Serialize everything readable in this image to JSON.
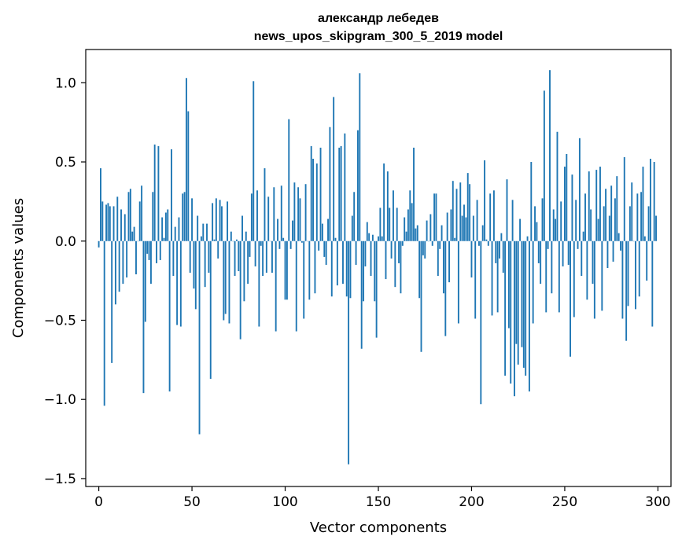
{
  "chart_data": {
    "type": "bar",
    "title": "александр лебедев",
    "subtitle": "news_upos_skipgram_300_5_2019 model",
    "xlabel": "Vector components",
    "ylabel": "Components values",
    "xlim": [
      -7,
      307
    ],
    "ylim": [
      -1.55,
      1.21
    ],
    "xticks": [
      0,
      50,
      100,
      150,
      200,
      250,
      300
    ],
    "xtick_labels": [
      "0",
      "50",
      "100",
      "150",
      "200",
      "250",
      "300"
    ],
    "yticks": [
      -1.5,
      -1.0,
      -0.5,
      0.0,
      0.5,
      1.0
    ],
    "ytick_labels": [
      "−1.5",
      "−1.0",
      "−0.5",
      "0.0",
      "0.5",
      "1.0"
    ],
    "grid": false,
    "bar_color": "#1f77b4",
    "x": [
      0,
      1,
      2,
      3,
      4,
      5,
      6,
      7,
      8,
      9,
      10,
      11,
      12,
      13,
      14,
      15,
      16,
      17,
      18,
      19,
      20,
      21,
      22,
      23,
      24,
      25,
      26,
      27,
      28,
      29,
      30,
      31,
      32,
      33,
      34,
      35,
      36,
      37,
      38,
      39,
      40,
      41,
      42,
      43,
      44,
      45,
      46,
      47,
      48,
      49,
      50,
      51,
      52,
      53,
      54,
      55,
      56,
      57,
      58,
      59,
      60,
      61,
      62,
      63,
      64,
      65,
      66,
      67,
      68,
      69,
      70,
      71,
      72,
      73,
      74,
      75,
      76,
      77,
      78,
      79,
      80,
      81,
      82,
      83,
      84,
      85,
      86,
      87,
      88,
      89,
      90,
      91,
      92,
      93,
      94,
      95,
      96,
      97,
      98,
      99,
      100,
      101,
      102,
      103,
      104,
      105,
      106,
      107,
      108,
      109,
      110,
      111,
      112,
      113,
      114,
      115,
      116,
      117,
      118,
      119,
      120,
      121,
      122,
      123,
      124,
      125,
      126,
      127,
      128,
      129,
      130,
      131,
      132,
      133,
      134,
      135,
      136,
      137,
      138,
      139,
      140,
      141,
      142,
      143,
      144,
      145,
      146,
      147,
      148,
      149,
      150,
      151,
      152,
      153,
      154,
      155,
      156,
      157,
      158,
      159,
      160,
      161,
      162,
      163,
      164,
      165,
      166,
      167,
      168,
      169,
      170,
      171,
      172,
      173,
      174,
      175,
      176,
      177,
      178,
      179,
      180,
      181,
      182,
      183,
      184,
      185,
      186,
      187,
      188,
      189,
      190,
      191,
      192,
      193,
      194,
      195,
      196,
      197,
      198,
      199,
      200,
      201,
      202,
      203,
      204,
      205,
      206,
      207,
      208,
      209,
      210,
      211,
      212,
      213,
      214,
      215,
      216,
      217,
      218,
      219,
      220,
      221,
      222,
      223,
      224,
      225,
      226,
      227,
      228,
      229,
      230,
      231,
      232,
      233,
      234,
      235,
      236,
      237,
      238,
      239,
      240,
      241,
      242,
      243,
      244,
      245,
      246,
      247,
      248,
      249,
      250,
      251,
      252,
      253,
      254,
      255,
      256,
      257,
      258,
      259,
      260,
      261,
      262,
      263,
      264,
      265,
      266,
      267,
      268,
      269,
      270,
      271,
      272,
      273,
      274,
      275,
      276,
      277,
      278,
      279,
      280,
      281,
      282,
      283,
      284,
      285,
      286,
      287,
      288,
      289,
      290,
      291,
      292,
      293,
      294,
      295,
      296,
      297,
      298,
      299
    ],
    "values": [
      -0.04,
      0.46,
      0.25,
      -1.04,
      0.23,
      0.24,
      0.22,
      -0.77,
      0.22,
      -0.4,
      0.28,
      -0.32,
      0.2,
      -0.27,
      0.17,
      -0.23,
      0.31,
      0.33,
      0.06,
      0.09,
      -0.21,
      0.0,
      0.25,
      0.35,
      -0.96,
      -0.51,
      -0.08,
      -0.12,
      -0.27,
      0.31,
      0.61,
      -0.14,
      0.6,
      -0.12,
      0.15,
      0.02,
      0.18,
      0.2,
      -0.95,
      0.58,
      -0.22,
      0.09,
      -0.53,
      0.15,
      -0.54,
      0.3,
      0.31,
      1.03,
      0.82,
      -0.2,
      0.27,
      -0.3,
      -0.43,
      0.16,
      -1.22,
      0.03,
      0.11,
      -0.29,
      0.11,
      -0.2,
      -0.87,
      0.24,
      0.01,
      0.27,
      -0.11,
      0.26,
      0.22,
      -0.5,
      -0.46,
      0.25,
      -0.52,
      0.06,
      0.0,
      -0.22,
      0.01,
      -0.19,
      -0.62,
      0.16,
      -0.38,
      0.06,
      -0.27,
      -0.1,
      0.3,
      1.01,
      -0.16,
      0.32,
      -0.54,
      -0.03,
      -0.22,
      0.46,
      -0.2,
      0.28,
      0.0,
      -0.2,
      0.34,
      -0.57,
      0.14,
      -0.05,
      0.35,
      0.02,
      -0.37,
      -0.37,
      0.77,
      -0.05,
      0.13,
      0.37,
      -0.57,
      0.34,
      0.27,
      -0.01,
      -0.49,
      0.36,
      0.0,
      -0.37,
      0.6,
      0.52,
      -0.33,
      0.49,
      -0.06,
      0.59,
      0.11,
      -0.1,
      -0.15,
      0.14,
      0.72,
      -0.35,
      0.91,
      0.02,
      -0.28,
      0.59,
      0.6,
      -0.27,
      0.68,
      -0.35,
      -1.41,
      -0.36,
      0.16,
      0.31,
      -0.15,
      0.7,
      1.06,
      -0.68,
      -0.38,
      -0.16,
      0.12,
      0.05,
      -0.22,
      0.04,
      -0.38,
      -0.61,
      0.03,
      0.21,
      0.03,
      0.49,
      -0.24,
      0.44,
      0.21,
      -0.11,
      0.32,
      -0.29,
      0.21,
      -0.14,
      -0.33,
      -0.03,
      0.15,
      0.06,
      0.2,
      0.32,
      0.24,
      0.59,
      0.08,
      0.1,
      -0.36,
      -0.7,
      -0.09,
      -0.11,
      0.13,
      0.0,
      0.17,
      -0.03,
      0.3,
      0.3,
      -0.22,
      -0.05,
      0.1,
      -0.33,
      -0.6,
      0.18,
      -0.26,
      0.2,
      0.38,
      0.02,
      0.33,
      -0.52,
      0.37,
      0.16,
      0.23,
      0.15,
      0.43,
      0.36,
      -0.23,
      0.16,
      -0.49,
      0.26,
      -0.03,
      -1.03,
      0.1,
      0.51,
      0.01,
      -0.03,
      0.3,
      -0.47,
      0.32,
      -0.14,
      -0.45,
      -0.11,
      0.05,
      -0.2,
      -0.85,
      0.39,
      -0.55,
      -0.9,
      0.26,
      -0.98,
      -0.65,
      -0.78,
      0.14,
      -0.67,
      -0.8,
      -0.85,
      0.03,
      -0.95,
      0.5,
      -0.52,
      0.22,
      0.12,
      -0.14,
      -0.27,
      0.27,
      0.95,
      -0.45,
      -0.05,
      1.08,
      -0.33,
      0.2,
      0.14,
      0.69,
      -0.45,
      0.25,
      -0.16,
      0.47,
      0.55,
      -0.15,
      -0.73,
      0.42,
      -0.48,
      0.26,
      -0.05,
      0.65,
      -0.22,
      0.06,
      0.3,
      -0.37,
      0.44,
      0.2,
      -0.27,
      -0.49,
      0.45,
      0.14,
      0.47,
      -0.44,
      0.22,
      0.33,
      -0.17,
      0.16,
      0.35,
      -0.13,
      0.27,
      0.41,
      0.05,
      -0.06,
      -0.49,
      0.53,
      -0.63,
      -0.41,
      0.22,
      0.37,
      0.0,
      -0.43,
      0.3,
      -0.35,
      0.31,
      0.47,
      0.03,
      -0.25,
      0.22,
      0.52,
      -0.54,
      0.5,
      0.16
    ]
  }
}
